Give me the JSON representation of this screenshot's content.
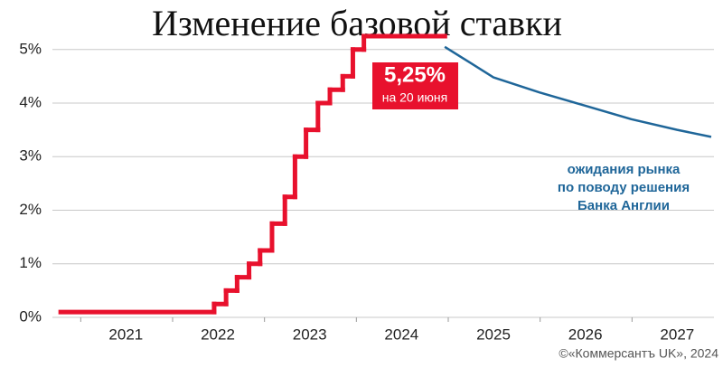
{
  "chart_data": {
    "type": "line",
    "title": "Изменение базовой ставки",
    "xlim": [
      2020.2,
      2027.4
    ],
    "ylim": [
      0,
      5.3
    ],
    "xticks": [
      2021,
      2022,
      2023,
      2024,
      2025,
      2026,
      2027
    ],
    "yticks": [
      {
        "value": 0,
        "label": "0%"
      },
      {
        "value": 1,
        "label": "1%"
      },
      {
        "value": 2,
        "label": "2%"
      },
      {
        "value": 3,
        "label": "3%"
      },
      {
        "value": 4,
        "label": "4%"
      },
      {
        "value": 5,
        "label": "5%"
      }
    ],
    "grid": true,
    "series": [
      {
        "color": "#e8112d",
        "step": true,
        "x": [
          2020.29,
          2021.96,
          2022.09,
          2022.21,
          2022.34,
          2022.46,
          2022.59,
          2022.73,
          2022.84,
          2022.96,
          2023.09,
          2023.22,
          2023.36,
          2023.47,
          2023.59,
          2024.47
        ],
        "values": [
          0.1,
          0.25,
          0.5,
          0.75,
          1.0,
          1.25,
          1.75,
          2.25,
          3.0,
          3.5,
          4.0,
          4.25,
          4.5,
          5.0,
          5.25,
          5.25
        ]
      },
      {
        "color": "#1f6699",
        "x": [
          2024.47,
          2024.75,
          2025.0,
          2025.5,
          2026.0,
          2026.5,
          2027.0,
          2027.37
        ],
        "values": [
          5.05,
          4.75,
          4.48,
          4.2,
          3.95,
          3.7,
          3.5,
          3.37
        ]
      }
    ],
    "callout": {
      "value_label": "5,25%",
      "date": "на 20 июня"
    },
    "annotation": [
      "ожидания рынка",
      "по поводу решения",
      "Банка Англии"
    ],
    "credit": "©«Коммерсантъ UK», 2024"
  }
}
